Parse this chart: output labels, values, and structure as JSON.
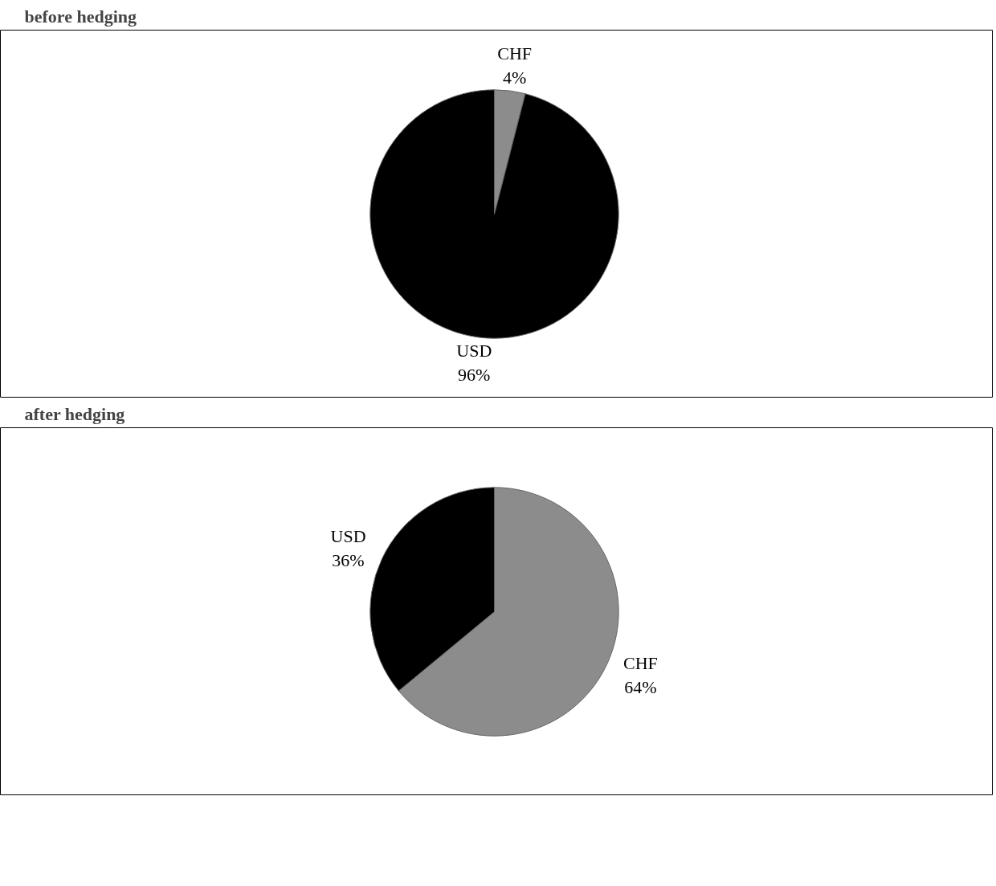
{
  "chart_data": [
    {
      "type": "pie",
      "title": "before hedging",
      "categories": [
        "CHF",
        "USD"
      ],
      "values": [
        4,
        96
      ],
      "colors": [
        "#8c8c8c",
        "#000000"
      ],
      "value_labels": [
        "4%",
        "96%"
      ]
    },
    {
      "type": "pie",
      "title": "after hedging",
      "categories": [
        "CHF",
        "USD"
      ],
      "values": [
        64,
        36
      ],
      "colors": [
        "#8c8c8c",
        "#000000"
      ],
      "value_labels": [
        "64%",
        "36%"
      ]
    }
  ]
}
